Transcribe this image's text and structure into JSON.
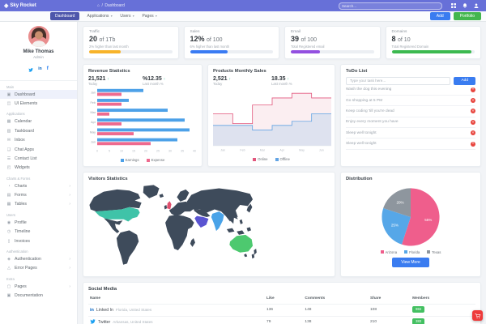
{
  "topbar": {
    "brand": "Sky Rocket",
    "breadcrumb": {
      "home_icon": "⌂",
      "separator": "/",
      "current": "Dashboard"
    },
    "search": {
      "placeholder": "Search..."
    }
  },
  "tabbar": {
    "tabs": [
      {
        "label": "Dashboard",
        "active": true,
        "dropdown": false
      },
      {
        "label": "Applications",
        "active": false,
        "dropdown": true
      },
      {
        "label": "Users",
        "active": false,
        "dropdown": true
      },
      {
        "label": "Pages",
        "active": false,
        "dropdown": true
      }
    ],
    "actions": [
      {
        "label": "Add",
        "color": "#3a7cf0"
      },
      {
        "label": "Portfolio",
        "color": "#43b64f"
      }
    ]
  },
  "sidebar": {
    "user": {
      "name": "Mike Thomas",
      "role": "Admin"
    },
    "sections": [
      {
        "label": "Main",
        "items": [
          {
            "label": "Dashboard",
            "icon": "▣",
            "active": true,
            "chevron": false
          },
          {
            "label": "UI Elements",
            "icon": "◫",
            "active": false,
            "chevron": false
          }
        ]
      },
      {
        "label": "Applications",
        "items": [
          {
            "label": "Calendar",
            "icon": "▦",
            "active": false,
            "chevron": false
          },
          {
            "label": "Taskboard",
            "icon": "▥",
            "active": false,
            "chevron": false
          },
          {
            "label": "Inbox",
            "icon": "✉",
            "active": false,
            "chevron": false
          },
          {
            "label": "Chat Apps",
            "icon": "❑",
            "active": false,
            "chevron": false
          },
          {
            "label": "Contact List",
            "icon": "☰",
            "active": false,
            "chevron": false
          },
          {
            "label": "Widgets",
            "icon": "◰",
            "active": false,
            "chevron": false
          }
        ]
      },
      {
        "label": "Charts & Forms",
        "items": [
          {
            "label": "Charts",
            "icon": "◔",
            "active": false,
            "chevron": true
          },
          {
            "label": "Forms",
            "icon": "▤",
            "active": false,
            "chevron": true
          },
          {
            "label": "Tables",
            "icon": "▦",
            "active": false,
            "chevron": true
          }
        ]
      },
      {
        "label": "Users",
        "items": [
          {
            "label": "Profile",
            "icon": "◉",
            "active": false,
            "chevron": false
          },
          {
            "label": "Timeline",
            "icon": "◷",
            "active": false,
            "chevron": false
          },
          {
            "label": "Invoices",
            "icon": "▯",
            "active": false,
            "chevron": false
          }
        ]
      },
      {
        "label": "Authentication",
        "items": [
          {
            "label": "Authentication",
            "icon": "◈",
            "active": false,
            "chevron": true
          },
          {
            "label": "Error Pages",
            "icon": "△",
            "active": false,
            "chevron": true
          }
        ]
      },
      {
        "label": "Extra",
        "items": [
          {
            "label": "Pages",
            "icon": "▢",
            "active": false,
            "chevron": true
          },
          {
            "label": "Documentation",
            "icon": "▣",
            "active": false,
            "chevron": false
          }
        ]
      }
    ]
  },
  "stat_cards": [
    {
      "label": "Traffic",
      "value": "20",
      "suffix": "of 1Tb",
      "caption": "2% higher than last month",
      "color": "#f7b32a",
      "percent": 38
    },
    {
      "label": "Sales",
      "value": "12%",
      "suffix": "of 100",
      "caption": "6% higher than last month",
      "color": "#3a7bf3",
      "percent": 45
    },
    {
      "label": "Email",
      "value": "39",
      "suffix": "of 100",
      "caption": "Total Registered email",
      "color": "#9350e0",
      "percent": 35
    },
    {
      "label": "Domains",
      "value": "8",
      "suffix": "of 10",
      "caption": "Total Registered Domain",
      "color": "#3cb950",
      "percent": 96
    }
  ],
  "revenue_panel": {
    "title": "Revenue Statistics",
    "stat_left": {
      "value": "21,521",
      "trend": "↑",
      "caption": "Today"
    },
    "stat_right": {
      "value": "%12.35",
      "trend": "↑",
      "caption": "Last month %"
    }
  },
  "products_panel": {
    "title": "Products Monthly Sales",
    "stat_left": {
      "value": "2,521",
      "trend": "↑",
      "caption": "Today"
    },
    "stat_right": {
      "value": "18.35",
      "trend": "↑",
      "caption": "Last month %"
    }
  },
  "todo_panel": {
    "title": "ToDo List",
    "input_placeholder": "Type your task here...",
    "add_label": "Add",
    "items": [
      "Wash the dog this evening",
      "Go shopping at 5 PM",
      "Keep coding 'till you're dead",
      "Enjoy every moment you have",
      "Sleep well tonight",
      "Sleep well tonight"
    ]
  },
  "visitors_panel": {
    "title": "Visitors Statistics",
    "regions": [
      {
        "id": "united-states",
        "label": "United States",
        "color": "#3fc3a8"
      },
      {
        "id": "united-kingdom",
        "label": "United Kingdom",
        "color": "#e0506e"
      },
      {
        "id": "saudi-arabia",
        "label": "Saudi Arabia",
        "color": "#5a54d1"
      },
      {
        "id": "india",
        "label": "India",
        "color": "#4aa3e8"
      },
      {
        "id": "australia",
        "label": "Australia",
        "color": "#4dc96f"
      },
      {
        "id": "default",
        "label": "Other countries",
        "color": "#3e4b5b"
      }
    ]
  },
  "distribution_panel": {
    "title": "Distribution",
    "view_more_label": "View More"
  },
  "social_panel": {
    "title": "Social Media",
    "columns": [
      "Name",
      "Like",
      "Comments",
      "Share",
      "Members"
    ],
    "rows": [
      {
        "network": "linkedin",
        "name": "Linked In",
        "location": "Florida, United States",
        "like": "136",
        "comments": "148",
        "share": "108",
        "members": "984"
      },
      {
        "network": "twitter",
        "name": "Twitter",
        "location": "Arkansas, United States",
        "like": "79",
        "comments": "138",
        "share": "210",
        "members": "383"
      }
    ]
  },
  "chart_data": [
    {
      "id": "revenue",
      "type": "bar",
      "orientation": "horizontal",
      "title": "Revenue Statistics",
      "categories": [
        "Jan",
        "Feb",
        "Mar",
        "Apr",
        "May",
        "Jun"
      ],
      "series": [
        {
          "name": "Earnings",
          "color": "#4da1e8",
          "values": [
            19,
            13,
            29,
            36,
            38,
            33
          ]
        },
        {
          "name": "Expense",
          "color": "#ee6a8e",
          "values": [
            10,
            10,
            5,
            10,
            15,
            22
          ]
        }
      ],
      "xlim": [
        0,
        40
      ],
      "tick_step": 5,
      "legend_position": "bottom",
      "grid": false
    },
    {
      "id": "products",
      "type": "area",
      "step": true,
      "title": "Products Monthly Sales",
      "categories": [
        "Jan",
        "Feb",
        "Mar",
        "Apr",
        "May",
        "Jun"
      ],
      "series": [
        {
          "name": "Online",
          "color": "#e2567c",
          "fill": "#fbeef1",
          "values": [
            55,
            38,
            70,
            82,
            90,
            82
          ]
        },
        {
          "name": "Offline",
          "color": "#62a4e4",
          "fill": "#dee2ef",
          "values": [
            35,
            35,
            27,
            35,
            42,
            55
          ]
        }
      ],
      "ylim": [
        0,
        100
      ],
      "legend_position": "bottom",
      "grid": false
    },
    {
      "id": "distribution",
      "type": "pie",
      "title": "Distribution",
      "labels": [
        "Arizona",
        "Florida",
        "Texas"
      ],
      "values": [
        55,
        25,
        20
      ],
      "value_labels": [
        "55%",
        "25%",
        "20%"
      ],
      "colors": [
        "#ef5e8c",
        "#56a7e8",
        "#8e969e"
      ],
      "legend_position": "bottom"
    }
  ],
  "floating_button": {
    "color": "#ee3b3b",
    "icon": "cart"
  }
}
